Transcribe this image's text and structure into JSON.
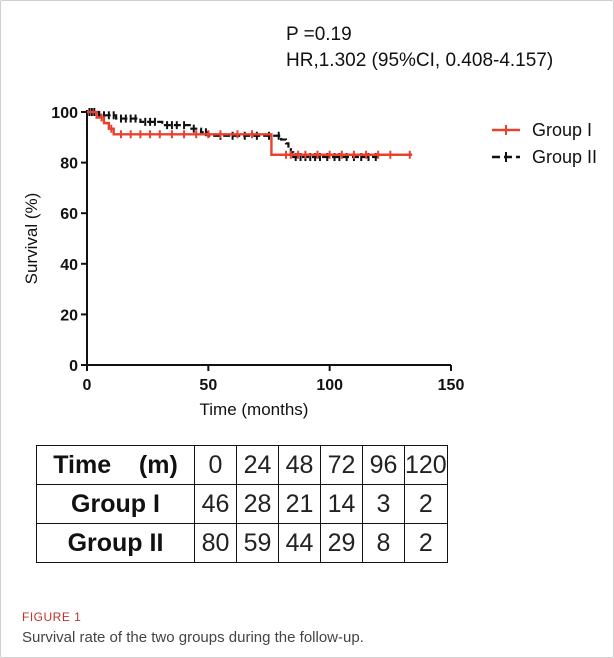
{
  "stats": {
    "p_value_text": "P =0.19",
    "hr_text": "HR,1.302 (95%CI, 0.408-4.157)"
  },
  "chart_data": {
    "type": "line",
    "subtype": "kaplan-meier",
    "xlabel": "Time (months)",
    "ylabel": "Survival (%)",
    "xlim": [
      0,
      150
    ],
    "ylim": [
      0,
      100
    ],
    "x_ticks": [
      0,
      50,
      100,
      150
    ],
    "y_ticks": [
      0,
      20,
      40,
      60,
      80,
      100
    ],
    "x_tick_labels": [
      "0",
      "50",
      "100",
      "150"
    ],
    "y_tick_labels": [
      "0",
      "20",
      "40",
      "60",
      "80",
      "100"
    ],
    "grid": false,
    "legend_position": "top-right",
    "series": [
      {
        "name": "Group I",
        "color": "#e8412e",
        "steps": [
          [
            0,
            100
          ],
          [
            4,
            97.8
          ],
          [
            7,
            95.6
          ],
          [
            9,
            93.4
          ],
          [
            11,
            91.2
          ],
          [
            76,
            83.1
          ],
          [
            134,
            83.1
          ]
        ],
        "censored": [
          6,
          10,
          14,
          18,
          22,
          26,
          30,
          35,
          40,
          45,
          50,
          55,
          62,
          68,
          82,
          84,
          87,
          90,
          95,
          100,
          105,
          110,
          115,
          120,
          125,
          133
        ]
      },
      {
        "name": "Group II",
        "color": "#111111",
        "steps": [
          [
            0,
            100
          ],
          [
            5,
            98.7
          ],
          [
            12,
            97.4
          ],
          [
            22,
            96.1
          ],
          [
            31,
            94.8
          ],
          [
            43,
            93.4
          ],
          [
            47,
            92
          ],
          [
            50,
            90.6
          ],
          [
            80,
            89.1
          ],
          [
            82,
            87.6
          ],
          [
            83,
            85.9
          ],
          [
            84,
            84.1
          ],
          [
            85,
            82.2
          ],
          [
            121,
            82.2
          ]
        ],
        "censored": [
          1,
          2,
          3,
          7,
          9,
          11,
          14,
          16,
          18,
          20,
          24,
          26,
          28,
          33,
          35,
          37,
          40,
          44,
          49,
          55,
          60,
          65,
          70,
          75,
          79,
          86,
          88,
          90,
          92,
          94,
          96,
          99,
          102,
          104,
          107,
          110,
          113,
          116,
          119
        ]
      }
    ]
  },
  "risk_table": {
    "header_label": "Time    (m)",
    "times": [
      "0",
      "24",
      "48",
      "72",
      "96",
      "120"
    ],
    "rows": [
      {
        "label": "Group I",
        "values": [
          "46",
          "28",
          "21",
          "14",
          "3",
          "2"
        ]
      },
      {
        "label": "Group II",
        "values": [
          "80",
          "59",
          "44",
          "29",
          "8",
          "2"
        ]
      }
    ]
  },
  "figure": {
    "label": "FIGURE 1",
    "caption": "Survival rate of the two groups during the follow-up."
  }
}
